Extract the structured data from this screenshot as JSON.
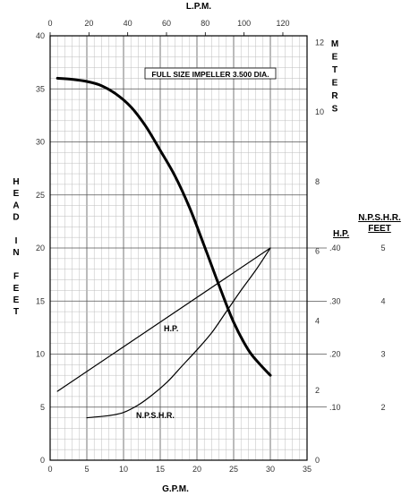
{
  "chart_data": {
    "type": "line",
    "x_axis": {
      "label": "G.P.M.",
      "min": 0,
      "max": 35,
      "ticks": [
        "0",
        "5",
        "10",
        "15",
        "20",
        "25",
        "30",
        "35"
      ]
    },
    "top_axis": {
      "label": "L.P.M.",
      "ticks": [
        "0",
        "20",
        "40",
        "60",
        "80",
        "100",
        "120"
      ]
    },
    "y_axis": {
      "label": "HEAD IN FEET",
      "min": 0,
      "max": 40,
      "ticks": [
        "0",
        "5",
        "10",
        "15",
        "20",
        "25",
        "30",
        "35",
        "40"
      ]
    },
    "meters_axis": {
      "label": "METERS",
      "ticks": [
        "0",
        "2",
        "4",
        "6",
        "8",
        "10",
        "12"
      ]
    },
    "hp_axis": {
      "label": "H.P.",
      "ticks": [
        ".10",
        ".20",
        ".30",
        ".40"
      ]
    },
    "npshr_axis": {
      "label_1": "N.P.S.H.R.",
      "label_2": "FEET",
      "ticks": [
        "2",
        "3",
        "4",
        "5"
      ]
    },
    "annotation": "FULL SIZE IMPELLER 3.500 DIA.",
    "grid": true,
    "series": [
      {
        "name": "",
        "x": [
          1,
          3,
          5,
          7,
          9,
          11,
          13,
          15,
          17,
          19,
          21,
          23,
          25,
          27,
          28.5,
          30
        ],
        "y": [
          36,
          35.9,
          35.7,
          35.3,
          34.5,
          33.3,
          31.5,
          29.2,
          26.8,
          23.8,
          20.2,
          16.5,
          13,
          10.4,
          9.1,
          8
        ]
      },
      {
        "name": "H.P.",
        "x": [
          1,
          30
        ],
        "y": [
          6.5,
          20
        ]
      },
      {
        "name": "N.P.S.H.R.",
        "x": [
          5,
          8,
          10,
          12,
          14,
          16,
          18,
          20,
          22,
          24,
          26,
          28,
          30
        ],
        "y": [
          4,
          4.2,
          4.5,
          5.2,
          6.2,
          7.4,
          8.9,
          10.4,
          12.0,
          14.0,
          16.0,
          17.9,
          20
        ]
      }
    ],
    "series_labels": [
      {
        "text": "H.P."
      },
      {
        "text": "N.P.S.H.R."
      }
    ]
  }
}
